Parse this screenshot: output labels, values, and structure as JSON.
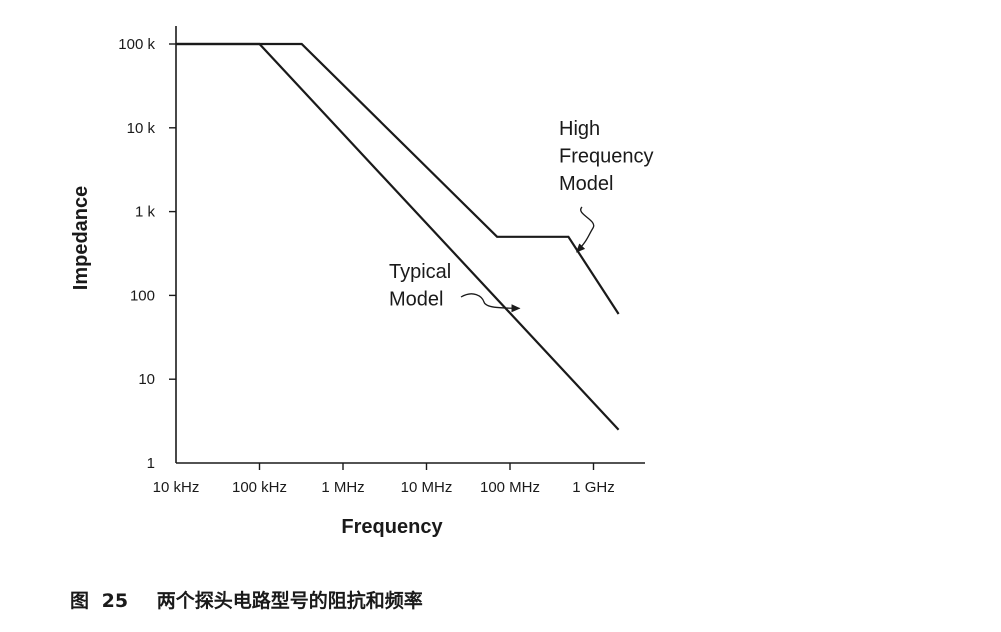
{
  "chart_data": {
    "type": "line",
    "title": "",
    "xlabel": "Frequency",
    "ylabel": "Impedance",
    "x_scale": "log",
    "y_scale": "log",
    "xlim": [
      10000,
      2000000000
    ],
    "ylim": [
      1,
      100000
    ],
    "x_ticks": [
      {
        "value": 10000,
        "label": "10 kHz"
      },
      {
        "value": 100000,
        "label": "100 kHz"
      },
      {
        "value": 1000000,
        "label": "1 MHz"
      },
      {
        "value": 10000000,
        "label": "10 MHz"
      },
      {
        "value": 100000000,
        "label": "100 MHz"
      },
      {
        "value": 1000000000,
        "label": "1 GHz"
      }
    ],
    "y_ticks": [
      {
        "value": 1,
        "label": "1"
      },
      {
        "value": 10,
        "label": "10"
      },
      {
        "value": 100,
        "label": "100"
      },
      {
        "value": 1000,
        "label": "1 k"
      },
      {
        "value": 10000,
        "label": "10 k"
      },
      {
        "value": 100000,
        "label": "100 k"
      }
    ],
    "grid": false,
    "series": [
      {
        "name": "Typical Model",
        "points": [
          {
            "x": 10000,
            "y": 100000
          },
          {
            "x": 100000,
            "y": 100000
          },
          {
            "x": 2000000000,
            "y": 2.5
          }
        ]
      },
      {
        "name": "High Frequency Model",
        "points": [
          {
            "x": 10000,
            "y": 100000
          },
          {
            "x": 320000,
            "y": 100000
          },
          {
            "x": 70000000,
            "y": 500
          },
          {
            "x": 500000000,
            "y": 500
          },
          {
            "x": 2000000000,
            "y": 60
          }
        ]
      }
    ],
    "annotations": [
      {
        "lines": [
          "High",
          "Frequency",
          "Model"
        ],
        "series": "High Frequency Model",
        "target": {
          "x": 630000000,
          "y": 330
        }
      },
      {
        "lines": [
          "Typical",
          "Model"
        ],
        "series": "Typical Model",
        "target": {
          "x": 130000000,
          "y": 70
        }
      }
    ]
  },
  "caption": {
    "label": "图",
    "number": "25",
    "text": "两个探头电路型号的阻抗和频率"
  }
}
